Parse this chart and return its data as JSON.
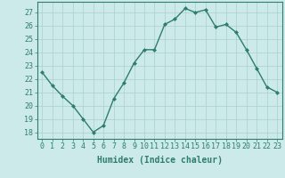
{
  "x": [
    0,
    1,
    2,
    3,
    4,
    5,
    6,
    7,
    8,
    9,
    10,
    11,
    12,
    13,
    14,
    15,
    16,
    17,
    18,
    19,
    20,
    21,
    22,
    23
  ],
  "y": [
    22.5,
    21.5,
    20.7,
    20.0,
    19.0,
    18.0,
    18.5,
    20.5,
    21.7,
    23.2,
    24.2,
    24.2,
    26.1,
    26.5,
    27.3,
    27.0,
    27.2,
    25.9,
    26.1,
    25.5,
    24.2,
    22.8,
    21.4,
    21.0
  ],
  "line_color": "#2e7d6e",
  "marker": "D",
  "marker_size": 2,
  "bg_color": "#cceaea",
  "grid_color": "#aacece",
  "xlabel": "Humidex (Indice chaleur)",
  "ylim": [
    17.5,
    27.8
  ],
  "xlim": [
    -0.5,
    23.5
  ],
  "yticks": [
    18,
    19,
    20,
    21,
    22,
    23,
    24,
    25,
    26,
    27
  ],
  "xticks": [
    0,
    1,
    2,
    3,
    4,
    5,
    6,
    7,
    8,
    9,
    10,
    11,
    12,
    13,
    14,
    15,
    16,
    17,
    18,
    19,
    20,
    21,
    22,
    23
  ],
  "xlabel_fontsize": 7,
  "tick_fontsize": 6,
  "line_width": 1.0
}
